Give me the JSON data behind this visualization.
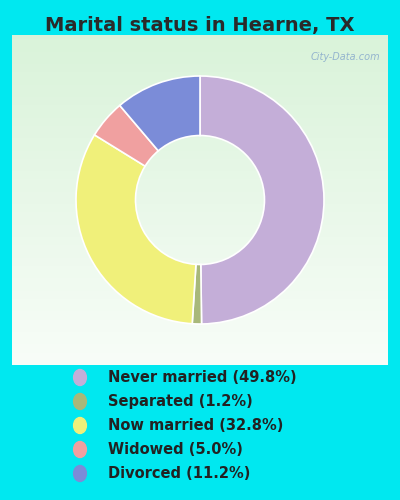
{
  "title": "Marital status in Hearne, TX",
  "slices": [
    {
      "label": "Never married (49.8%)",
      "value": 49.8,
      "color": "#c4aed8"
    },
    {
      "label": "Separated (1.2%)",
      "value": 1.2,
      "color": "#a8b87a"
    },
    {
      "label": "Now married (32.8%)",
      "value": 32.8,
      "color": "#f0f07a"
    },
    {
      "label": "Widowed (5.0%)",
      "value": 5.0,
      "color": "#f0a0a0"
    },
    {
      "label": "Divorced (11.2%)",
      "value": 11.2,
      "color": "#7b8cd8"
    }
  ],
  "legend_labels": [
    "Never married (49.8%)",
    "Separated (1.2%)",
    "Now married (32.8%)",
    "Widowed (5.0%)",
    "Divorced (11.2%)"
  ],
  "legend_colors": [
    "#c4aed8",
    "#a8b87a",
    "#f0f07a",
    "#f0a0a0",
    "#7b8cd8"
  ],
  "cyan_bg": "#00e8f0",
  "chart_bg": "#ffffff",
  "title_color": "#2a2a2a",
  "title_fontsize": 14,
  "legend_fontsize": 10.5,
  "watermark": "City-Data.com"
}
